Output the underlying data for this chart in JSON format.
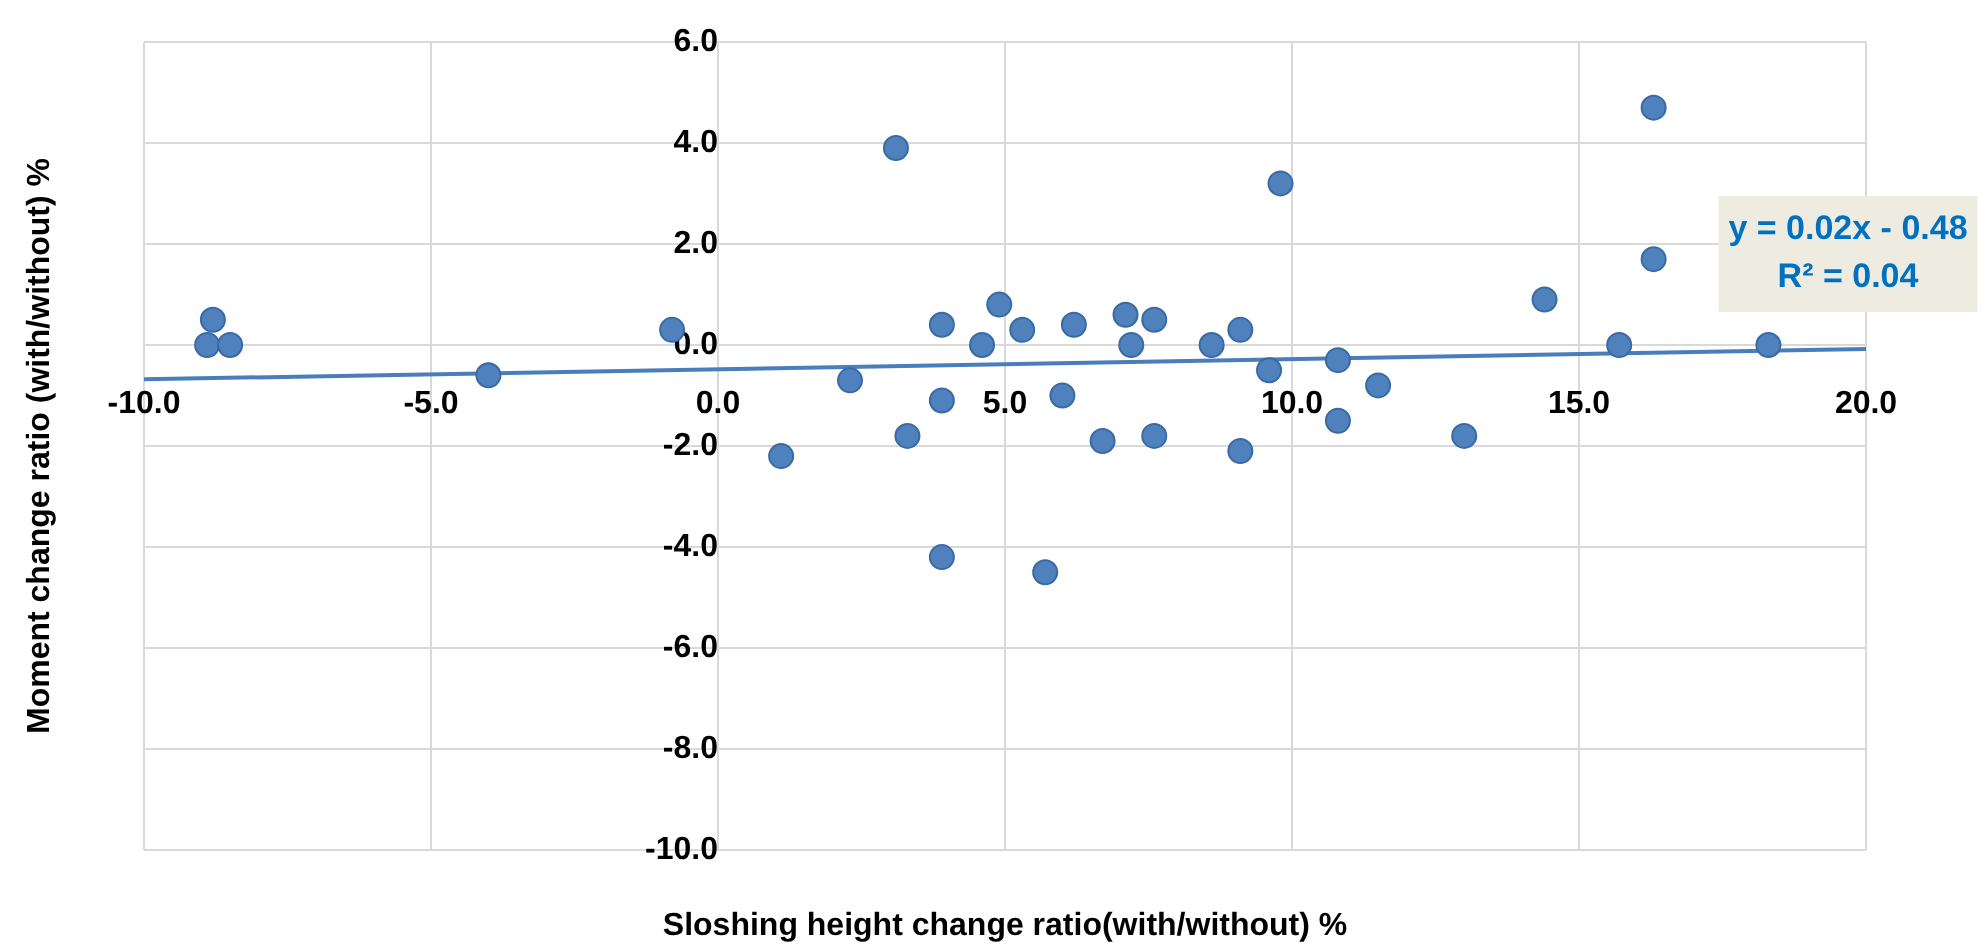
{
  "chart_data": {
    "type": "scatter",
    "xlabel": "Sloshing height change ratio(with/without) %",
    "ylabel": "Moment change ratio (with/without) %",
    "xlim": [
      -10,
      20
    ],
    "ylim": [
      -10,
      6
    ],
    "xticks": [
      {
        "value": -10,
        "label": "-10.0"
      },
      {
        "value": -5,
        "label": "-5.0"
      },
      {
        "value": 0,
        "label": "0.0"
      },
      {
        "value": 5,
        "label": "5.0"
      },
      {
        "value": 10,
        "label": "10.0"
      },
      {
        "value": 15,
        "label": "15.0"
      },
      {
        "value": 20,
        "label": "20.0"
      }
    ],
    "yticks": [
      {
        "value": -10,
        "label": "-10.0"
      },
      {
        "value": -8,
        "label": "-8.0"
      },
      {
        "value": -6,
        "label": "-6.0"
      },
      {
        "value": -4,
        "label": "-4.0"
      },
      {
        "value": -2,
        "label": "-2.0"
      },
      {
        "value": 0,
        "label": "0.0"
      },
      {
        "value": 2,
        "label": "2.0"
      },
      {
        "value": 4,
        "label": "4.0"
      },
      {
        "value": 6,
        "label": "6.0"
      }
    ],
    "grid": true,
    "marker": "circle",
    "legend": false,
    "annotations": [
      "y = 0.02x - 0.48",
      "R² = 0.04"
    ],
    "series": [
      {
        "color": "#4f81bd",
        "x": [
          -8.9,
          -8.8,
          -8.5,
          -4.0,
          -0.8,
          1.1,
          2.3,
          3.1,
          3.3,
          3.9,
          3.9,
          3.9,
          4.6,
          4.9,
          5.3,
          5.7,
          6.0,
          6.2,
          6.7,
          7.1,
          7.2,
          7.6,
          7.6,
          8.6,
          9.1,
          9.1,
          9.6,
          9.8,
          10.8,
          10.8,
          11.5,
          13.0,
          14.4,
          15.7,
          16.3,
          16.3,
          18.3
        ],
        "values": [
          0.0,
          0.5,
          0.0,
          -0.6,
          0.3,
          -2.2,
          -0.7,
          3.9,
          -1.8,
          0.4,
          -1.1,
          -4.2,
          0.0,
          0.8,
          0.3,
          -4.5,
          -1.0,
          0.4,
          -1.9,
          0.6,
          0.0,
          0.5,
          -1.8,
          0.0,
          0.3,
          -2.1,
          -0.5,
          3.2,
          -0.3,
          -1.5,
          -0.8,
          -1.8,
          0.9,
          0.0,
          4.7,
          1.7,
          0.0
        ]
      },
      {
        "type": "line",
        "color": "#4a7ebb",
        "marker": "none",
        "x": [
          -10,
          20
        ],
        "values": [
          -0.68,
          -0.08
        ]
      }
    ]
  }
}
